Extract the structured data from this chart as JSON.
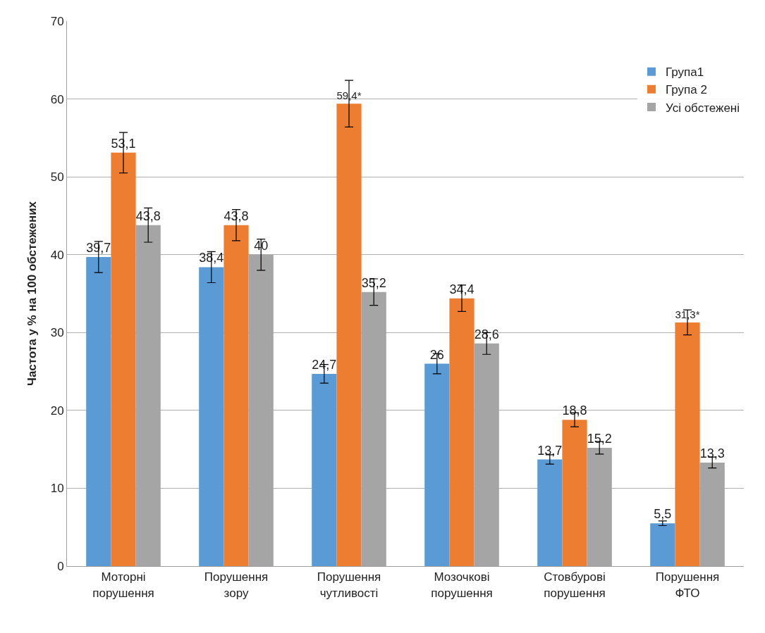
{
  "chart_data": {
    "type": "bar",
    "ylabel": "Частота у % на 100 обстежених",
    "categories": [
      "Моторні порушення",
      "Порушення зору",
      "Порушення чутливості",
      "Мозочкові порушення",
      "Стовбурові порушення",
      "Порушення ФТО"
    ],
    "series": [
      {
        "name": "Група1",
        "color": "#5b9bd5",
        "values": [
          39.7,
          38.4,
          24.7,
          26,
          13.7,
          5.5
        ],
        "errors": [
          2,
          2,
          1.2,
          1.3,
          0.6,
          0.3
        ],
        "value_labels": [
          "39,7",
          "38,4",
          "24,7",
          "26",
          "13,7",
          "5,5"
        ]
      },
      {
        "name": "Група 2",
        "color": "#ed7d31",
        "values": [
          53.1,
          43.8,
          59.4,
          34.4,
          18.8,
          31.3
        ],
        "errors": [
          2.6,
          2,
          3,
          1.7,
          0.9,
          1.6
        ],
        "value_labels": [
          "53,1",
          "43,8",
          "59,4*",
          "34,4",
          "18,8",
          "31,3*"
        ]
      },
      {
        "name": "Усі обстежені",
        "color": "#a5a5a5",
        "values": [
          43.8,
          40,
          35.2,
          28.6,
          15.2,
          13.3
        ],
        "errors": [
          2.2,
          2,
          1.7,
          1.4,
          0.8,
          0.7
        ],
        "value_labels": [
          "43,8",
          "40",
          "35,2",
          "28,6",
          "15,2",
          "13,3"
        ]
      }
    ],
    "ylim": [
      0,
      70
    ],
    "yticks": [
      0,
      10,
      20,
      30,
      40,
      50,
      60,
      70
    ],
    "grid": "y",
    "legend": "top right"
  }
}
